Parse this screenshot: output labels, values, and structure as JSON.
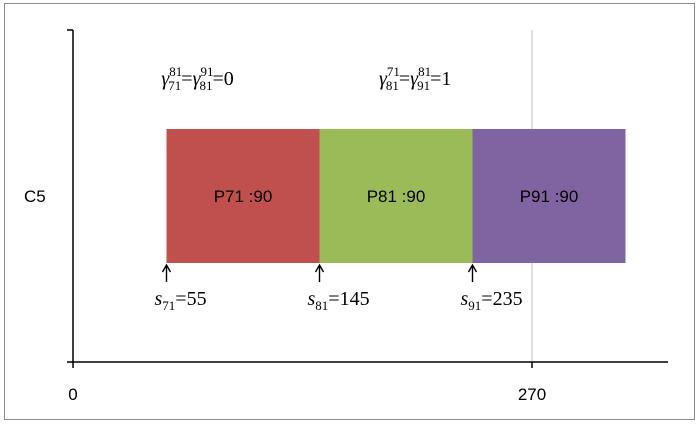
{
  "chart_data": {
    "type": "gantt",
    "row_label": "C5",
    "xlim": [
      0,
      360
    ],
    "x_ticks": [
      {
        "value": 0,
        "label": "0"
      },
      {
        "value": 270,
        "label": "270"
      }
    ],
    "grid": {
      "vertical": true,
      "x_values": [
        270
      ]
    },
    "tasks": [
      {
        "label": "P71 :90",
        "start": 55,
        "duration": 90,
        "color": "#C0504D"
      },
      {
        "label": "P81 :90",
        "start": 145,
        "duration": 90,
        "color": "#9BBB59"
      },
      {
        "label": "P91 :90",
        "start": 235,
        "duration": 90,
        "color": "#8064A2"
      }
    ],
    "start_markers": [
      {
        "value": 55,
        "sub": "71",
        "eq": "=55"
      },
      {
        "value": 145,
        "sub": "81",
        "eq": "=145"
      },
      {
        "value": 235,
        "sub": "91",
        "eq": "=235"
      }
    ],
    "annotations": [
      {
        "x_value": 52,
        "p1": {
          "sup": "81",
          "sub": "71"
        },
        "p2": {
          "sup": "91",
          "sub": "81"
        },
        "rhs": "=0"
      },
      {
        "x_value": 180,
        "p1": {
          "sup": "71",
          "sub": "81"
        },
        "p2": {
          "sup": "81",
          "sub": "91"
        },
        "rhs": "=1"
      }
    ]
  }
}
